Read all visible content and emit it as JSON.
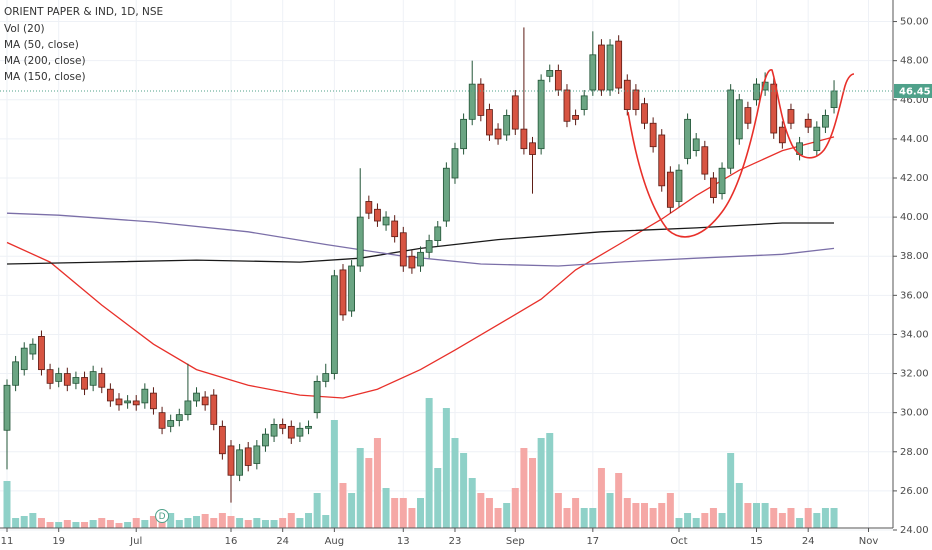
{
  "chart_data": {
    "type": "candlestick",
    "title": "ORIENT PAPER & IND, 1D, NSE",
    "volume_name": "Vol (20)",
    "categories": [
      "11",
      null,
      null,
      null,
      null,
      null,
      "19",
      null,
      null,
      null,
      null,
      null,
      null,
      null,
      null,
      "Jul",
      null,
      null,
      null,
      null,
      null,
      null,
      null,
      null,
      null,
      null,
      "16",
      null,
      null,
      null,
      null,
      null,
      "24",
      null,
      null,
      null,
      null,
      null,
      "Aug",
      null,
      null,
      null,
      null,
      null,
      null,
      null,
      "13",
      null,
      null,
      null,
      null,
      null,
      "23",
      null,
      null,
      null,
      null,
      null,
      null,
      "Sep",
      null,
      null,
      null,
      null,
      null,
      null,
      null,
      null,
      "17",
      null,
      null,
      null,
      null,
      null,
      null,
      null,
      null,
      null,
      "Oct",
      null,
      null,
      null,
      null,
      null,
      null,
      null,
      null,
      "15",
      null,
      null,
      null,
      null,
      null,
      "24",
      null,
      null,
      null,
      null,
      null,
      null,
      "Nov"
    ],
    "open": [
      29.1,
      31.4,
      32.2,
      33.0,
      33.9,
      32.2,
      31.6,
      32.0,
      31.5,
      31.8,
      31.4,
      32.0,
      31.2,
      30.7,
      30.5,
      30.6,
      30.5,
      31.0,
      30.0,
      29.3,
      29.6,
      29.9,
      30.6,
      30.8,
      30.9,
      29.3,
      28.3,
      26.8,
      28.2,
      27.4,
      28.3,
      28.8,
      29.4,
      29.3,
      28.8,
      29.2,
      30.0,
      31.6,
      32.0,
      37.3,
      35.2,
      37.5,
      40.8,
      40.4,
      39.6,
      39.8,
      39.2,
      38.0,
      37.5,
      38.2,
      38.8,
      39.8,
      42.0,
      43.5,
      45.0,
      46.8,
      45.5,
      44.5,
      44.2,
      46.2,
      44.5,
      43.8,
      43.5,
      47.2,
      47.5,
      46.5,
      45.2,
      45.5,
      46.5,
      48.8,
      46.5,
      49.0,
      47.0,
      46.5,
      45.8,
      44.8,
      44.2,
      42.3,
      40.8,
      43.0,
      43.4,
      43.6,
      42.0,
      41.2,
      42.5,
      44.0,
      45.6,
      46.0,
      46.5,
      46.8,
      44.6,
      45.5,
      43.2,
      45.0,
      43.4,
      44.6,
      45.6,
      null,
      null,
      null,
      null
    ],
    "high": [
      31.7,
      32.9,
      33.6,
      33.8,
      34.2,
      32.5,
      32.3,
      32.3,
      32.1,
      32.1,
      32.4,
      32.3,
      31.5,
      31.0,
      30.9,
      30.9,
      31.5,
      31.3,
      30.3,
      29.9,
      30.2,
      32.5,
      31.3,
      31.1,
      31.2,
      29.6,
      28.6,
      28.4,
      28.5,
      28.6,
      29.2,
      29.7,
      29.7,
      29.6,
      29.5,
      29.6,
      31.9,
      32.5,
      37.3,
      37.6,
      37.8,
      42.5,
      41.1,
      40.7,
      40.3,
      40.1,
      39.5,
      38.3,
      38.5,
      39.1,
      39.8,
      42.8,
      43.8,
      45.3,
      48.0,
      47.1,
      45.8,
      44.8,
      45.5,
      46.5,
      49.7,
      44.1,
      47.3,
      47.8,
      47.8,
      46.8,
      45.5,
      46.5,
      49.5,
      49.1,
      49.1,
      49.3,
      47.3,
      46.8,
      46.1,
      45.1,
      44.5,
      42.6,
      42.7,
      45.3,
      44.3,
      43.9,
      42.3,
      42.8,
      46.8,
      46.3,
      45.9,
      47.1,
      47.4,
      47.1,
      44.9,
      45.8,
      44.1,
      45.3,
      44.9,
      45.5,
      47.0,
      null,
      null,
      null,
      null
    ],
    "low": [
      27.1,
      31.1,
      31.9,
      32.7,
      31.9,
      31.2,
      31.3,
      31.1,
      31.2,
      30.9,
      31.1,
      31.0,
      30.3,
      30.1,
      30.2,
      30.1,
      30.2,
      29.9,
      28.9,
      29.0,
      29.3,
      29.6,
      30.3,
      30.1,
      29.1,
      27.6,
      25.4,
      26.5,
      27.0,
      27.1,
      28.0,
      28.5,
      28.9,
      28.4,
      28.5,
      28.9,
      29.7,
      31.3,
      31.7,
      34.7,
      34.9,
      37.2,
      39.9,
      39.5,
      39.3,
      38.7,
      37.2,
      37.1,
      37.2,
      37.9,
      38.5,
      39.5,
      41.7,
      43.2,
      44.7,
      44.9,
      43.9,
      43.7,
      43.9,
      44.2,
      43.2,
      41.2,
      43.2,
      46.9,
      46.2,
      44.6,
      44.7,
      45.2,
      46.2,
      46.2,
      46.2,
      46.3,
      45.2,
      45.2,
      44.5,
      43.3,
      41.3,
      40.2,
      40.5,
      42.7,
      43.1,
      41.9,
      40.7,
      40.9,
      42.2,
      43.7,
      44.5,
      45.7,
      46.2,
      44.0,
      43.5,
      44.5,
      42.9,
      44.3,
      43.1,
      44.3,
      45.3,
      null,
      null,
      null,
      null
    ],
    "close": [
      31.4,
      32.6,
      33.3,
      33.5,
      32.2,
      31.5,
      32.0,
      31.4,
      31.8,
      31.2,
      32.1,
      31.3,
      30.6,
      30.4,
      30.6,
      30.4,
      31.2,
      30.2,
      29.2,
      29.6,
      29.9,
      30.6,
      31.0,
      30.4,
      29.4,
      27.9,
      26.8,
      28.1,
      27.3,
      28.3,
      28.9,
      29.4,
      29.2,
      28.7,
      29.2,
      29.3,
      31.6,
      32.0,
      37.0,
      35.0,
      37.5,
      40.0,
      40.2,
      39.8,
      40.0,
      39.0,
      37.5,
      37.4,
      38.2,
      38.8,
      39.5,
      42.5,
      43.5,
      45.0,
      46.8,
      45.2,
      44.2,
      44.0,
      45.2,
      44.5,
      43.5,
      43.2,
      47.0,
      47.5,
      46.5,
      44.9,
      45.0,
      46.2,
      48.3,
      46.5,
      48.8,
      46.6,
      45.5,
      45.5,
      44.8,
      43.6,
      41.6,
      40.5,
      42.4,
      45.0,
      44.0,
      42.2,
      41.0,
      42.5,
      46.5,
      46.0,
      44.8,
      46.8,
      46.9,
      44.3,
      43.8,
      44.8,
      43.8,
      44.6,
      44.6,
      45.2,
      46.45,
      null,
      null,
      null,
      null
    ],
    "volume": [
      47,
      10,
      12,
      15,
      10,
      6,
      6,
      8,
      6,
      6,
      8,
      10,
      8,
      5,
      6,
      10,
      8,
      12,
      8,
      15,
      8,
      10,
      12,
      14,
      10,
      15,
      12,
      10,
      8,
      10,
      8,
      8,
      10,
      15,
      10,
      15,
      35,
      13,
      108,
      45,
      35,
      80,
      70,
      90,
      40,
      30,
      30,
      20,
      30,
      130,
      60,
      120,
      90,
      75,
      50,
      35,
      30,
      20,
      25,
      40,
      80,
      70,
      90,
      95,
      35,
      20,
      30,
      20,
      20,
      60,
      35,
      55,
      30,
      25,
      25,
      20,
      25,
      35,
      10,
      15,
      10,
      15,
      20,
      15,
      75,
      45,
      25,
      25,
      25,
      20,
      15,
      20,
      10,
      20,
      15,
      20,
      20,
      null,
      null,
      null,
      null
    ],
    "volume_ylim": [
      0,
      130
    ],
    "up_color": "#6ba583",
    "up_border": "#225437",
    "down_color": "#d75442",
    "down_border": "#5b1a13",
    "volume_up_color": "#8fd1c8",
    "volume_down_color": "#f5a8a6",
    "series": [
      {
        "name": "MA (50, close)",
        "color": "#e8302a",
        "x": [
          0,
          5,
          11,
          17,
          22,
          28,
          34,
          39,
          43,
          48,
          52,
          57,
          62,
          66,
          71,
          76,
          80,
          85,
          90,
          96
        ],
        "values": [
          38.7,
          37.7,
          35.5,
          33.5,
          32.2,
          31.4,
          30.9,
          30.75,
          31.2,
          32.2,
          33.2,
          34.5,
          35.8,
          37.3,
          38.6,
          39.9,
          41.1,
          42.4,
          43.4,
          44.1
        ]
      },
      {
        "name": "MA (200, close)",
        "color": "#1a1a1a",
        "x": [
          0,
          11,
          22,
          34,
          41,
          48,
          57,
          69,
          80,
          90,
          96
        ],
        "values": [
          37.6,
          37.7,
          37.8,
          37.7,
          37.9,
          38.4,
          38.85,
          39.25,
          39.45,
          39.7,
          39.7
        ]
      },
      {
        "name": "MA (150, close)",
        "color": "#7b6fa8",
        "x": [
          0,
          6,
          17,
          28,
          37,
          46,
          55,
          64,
          71,
          80,
          90,
          96
        ],
        "values": [
          40.2,
          40.1,
          39.75,
          39.25,
          38.6,
          38.0,
          37.6,
          37.5,
          37.7,
          37.9,
          38.1,
          38.4
        ]
      }
    ],
    "last_price": 46.45,
    "last_price_color": "#4fa18a",
    "dividend_marker": {
      "label": "D",
      "index": 18
    },
    "ylim": [
      24,
      51
    ],
    "yticks": [
      {
        "value": 24,
        "label": "24.00"
      },
      {
        "value": 26,
        "label": "26.00"
      },
      {
        "value": 28,
        "label": "28.00"
      },
      {
        "value": 30,
        "label": "30.00"
      },
      {
        "value": 32,
        "label": "32.00"
      },
      {
        "value": 34,
        "label": "34.00"
      },
      {
        "value": 36,
        "label": "36.00"
      },
      {
        "value": 38,
        "label": "38.00"
      },
      {
        "value": 40,
        "label": "40.00"
      },
      {
        "value": 42,
        "label": "42.00"
      },
      {
        "value": 44,
        "label": "44.00"
      },
      {
        "value": 46,
        "label": "46.00"
      },
      {
        "value": 48,
        "label": "48.00"
      },
      {
        "value": 50,
        "label": "50.00"
      }
    ],
    "grid": true
  }
}
